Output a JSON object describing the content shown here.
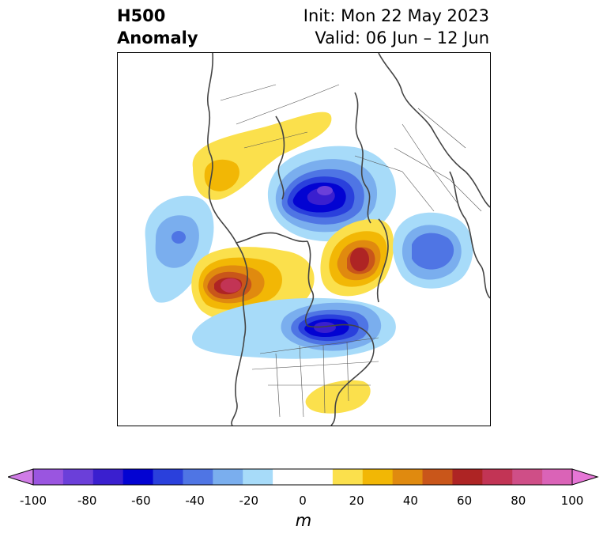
{
  "header": {
    "title_line1": "H500",
    "title_line2": "Anomaly",
    "init_label": "Init: Mon 22 May 2023",
    "valid_label": "Valid: 06 Jun – 12 Jun"
  },
  "map": {
    "projection": "polar stereographic",
    "anomaly_centers": [
      {
        "region": "Alaska / Yukon",
        "sign": "positive",
        "peak_m": 20
      },
      {
        "region": "Siberia / Arctic Russia",
        "sign": "negative",
        "peak_m": -60
      },
      {
        "region": "North Pacific",
        "sign": "negative",
        "peak_m": -30
      },
      {
        "region": "NE Pacific / Gulf of Alaska",
        "sign": "positive",
        "peak_m": 70
      },
      {
        "region": "Greenland / Norwegian Sea",
        "sign": "positive",
        "peak_m": 60
      },
      {
        "region": "Hudson Bay / Eastern Canada",
        "sign": "negative",
        "peak_m": -60
      },
      {
        "region": "North Atlantic",
        "sign": "negative",
        "peak_m": -40
      },
      {
        "region": "Southeast US / Gulf",
        "sign": "positive",
        "peak_m": 20
      }
    ]
  },
  "colorbar": {
    "label": "m",
    "tick_labels": [
      "-100",
      "-80",
      "-60",
      "-40",
      "-20",
      "0",
      "20",
      "40",
      "60",
      "80",
      "100"
    ],
    "colors": [
      "#d07ce6",
      "#9a55e0",
      "#6b3fd9",
      "#3a1fcf",
      "#0303d2",
      "#2a40dc",
      "#4f75e4",
      "#7aaeee",
      "#a7dbf9",
      "#ffffff",
      "#ffffff",
      "#fbe04c",
      "#f2b705",
      "#e08a0f",
      "#c9561a",
      "#ae2424",
      "#c23455",
      "#cf4e87",
      "#da63b7",
      "#e676d6"
    ],
    "extend": "both"
  }
}
